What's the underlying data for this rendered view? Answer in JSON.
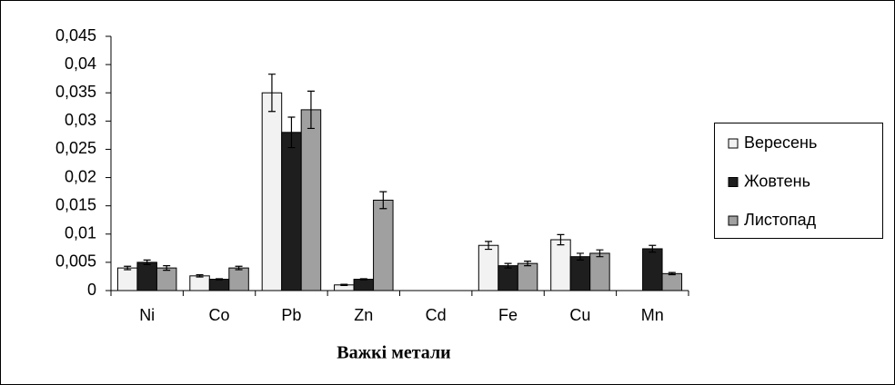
{
  "chart_data": {
    "type": "bar",
    "x_label": "Важкі метали",
    "categories": [
      "Ni",
      "Co",
      "Pb",
      "Zn",
      "Cd",
      "Fe",
      "Cu",
      "Mn"
    ],
    "series": [
      {
        "name": "Вересень",
        "color": "#f2f2f2",
        "values": [
          0.004,
          0.0026,
          0.035,
          0.001,
          null,
          0.008,
          0.009,
          null
        ],
        "errors": [
          0.0003,
          0.0002,
          0.0033,
          0.0001,
          null,
          0.0007,
          0.0009,
          null
        ]
      },
      {
        "name": "Жовтень",
        "color": "#1e1e1e",
        "values": [
          0.005,
          0.002,
          0.028,
          0.002,
          null,
          0.0044,
          0.006,
          0.0074
        ],
        "errors": [
          0.0004,
          0.0001,
          0.0027,
          0.0001,
          null,
          0.0004,
          0.0006,
          0.0006
        ]
      },
      {
        "name": "Листопад",
        "color": "#a0a0a0",
        "values": [
          0.004,
          0.004,
          0.032,
          0.016,
          null,
          0.0048,
          0.0066,
          0.003
        ],
        "errors": [
          0.0004,
          0.0003,
          0.0033,
          0.0015,
          null,
          0.0004,
          0.0006,
          0.0002
        ]
      }
    ],
    "ylim": [
      0,
      0.045
    ],
    "yticks": [
      0,
      {
        "value": 0.005,
        "label": "0,005"
      },
      {
        "value": 0.01,
        "label": "0,01"
      },
      {
        "value": 0.015,
        "label": "0,015"
      },
      {
        "value": 0.02,
        "label": "0,02"
      },
      {
        "value": 0.025,
        "label": "0,025"
      },
      {
        "value": 0.03,
        "label": "0,03"
      },
      {
        "value": 0.035,
        "label": "0,035"
      },
      {
        "value": 0.04,
        "label": "0,04"
      },
      {
        "value": 0.045,
        "label": "0,045"
      }
    ],
    "legend": "right"
  }
}
